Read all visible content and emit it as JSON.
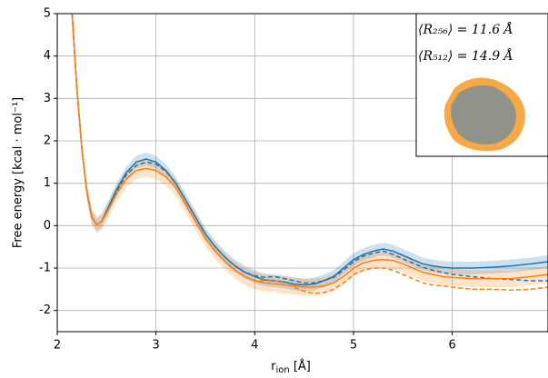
{
  "chart_data": {
    "type": "line",
    "x_label": "r",
    "x_label_sub": "ion",
    "x_label_unit": "[Å]",
    "y_label": "Free energy [kcal · mol⁻¹]",
    "inset_lines": [
      "⟨R₂₅₆⟩ = 11.6 Å",
      "⟨R₅₁₂⟩ = 14.9 Å"
    ],
    "x": [
      2.15,
      2.2,
      2.25,
      2.3,
      2.35,
      2.4,
      2.45,
      2.5,
      2.6,
      2.7,
      2.8,
      2.9,
      3.0,
      3.1,
      3.2,
      3.3,
      3.4,
      3.5,
      3.6,
      3.7,
      3.8,
      3.9,
      4.0,
      4.1,
      4.2,
      4.3,
      4.4,
      4.5,
      4.6,
      4.7,
      4.8,
      4.9,
      5.0,
      5.1,
      5.2,
      5.3,
      5.4,
      5.5,
      5.6,
      5.7,
      5.8,
      5.9,
      6.0,
      6.2,
      6.4,
      6.6,
      6.8,
      6.97
    ],
    "series": [
      {
        "color": "#1f77b4",
        "dash": false,
        "band": 0.15,
        "values": [
          5,
          3.2,
          1.8,
          0.8,
          0.2,
          0.02,
          0.1,
          0.35,
          0.85,
          1.25,
          1.5,
          1.57,
          1.5,
          1.3,
          1.0,
          0.6,
          0.2,
          -0.2,
          -0.5,
          -0.75,
          -0.95,
          -1.1,
          -1.2,
          -1.28,
          -1.3,
          -1.33,
          -1.38,
          -1.4,
          -1.38,
          -1.3,
          -1.2,
          -1.0,
          -0.8,
          -0.68,
          -0.6,
          -0.55,
          -0.6,
          -0.7,
          -0.8,
          -0.9,
          -0.95,
          -0.98,
          -1.0,
          -1.0,
          -0.98,
          -0.95,
          -0.9,
          -0.85
        ]
      },
      {
        "color": "#1f77b4",
        "dash": true,
        "values": [
          5,
          3.2,
          1.8,
          0.8,
          0.2,
          0.02,
          0.1,
          0.33,
          0.8,
          1.2,
          1.42,
          1.5,
          1.45,
          1.28,
          1.0,
          0.6,
          0.2,
          -0.2,
          -0.5,
          -0.75,
          -0.95,
          -1.1,
          -1.18,
          -1.22,
          -1.2,
          -1.25,
          -1.3,
          -1.35,
          -1.35,
          -1.3,
          -1.22,
          -1.05,
          -0.85,
          -0.72,
          -0.65,
          -0.6,
          -0.68,
          -0.78,
          -0.88,
          -0.98,
          -1.05,
          -1.1,
          -1.15,
          -1.2,
          -1.25,
          -1.27,
          -1.3,
          -1.3
        ]
      },
      {
        "color": "#ff7f0e",
        "dash": false,
        "band": 0.2,
        "values": [
          5,
          3.2,
          1.8,
          0.8,
          0.2,
          0.02,
          0.1,
          0.3,
          0.75,
          1.1,
          1.3,
          1.35,
          1.3,
          1.15,
          0.9,
          0.5,
          0.1,
          -0.3,
          -0.6,
          -0.85,
          -1.05,
          -1.2,
          -1.3,
          -1.35,
          -1.37,
          -1.4,
          -1.42,
          -1.45,
          -1.45,
          -1.42,
          -1.35,
          -1.2,
          -1.0,
          -0.88,
          -0.82,
          -0.8,
          -0.82,
          -0.9,
          -1.0,
          -1.1,
          -1.15,
          -1.2,
          -1.22,
          -1.25,
          -1.25,
          -1.25,
          -1.2,
          -1.15
        ]
      },
      {
        "color": "#ff7f0e",
        "dash": true,
        "values": [
          5,
          3.2,
          1.8,
          0.8,
          0.2,
          0.02,
          0.1,
          0.3,
          0.75,
          1.1,
          1.3,
          1.35,
          1.3,
          1.15,
          0.9,
          0.5,
          0.1,
          -0.3,
          -0.6,
          -0.85,
          -1.05,
          -1.2,
          -1.3,
          -1.3,
          -1.3,
          -1.35,
          -1.45,
          -1.55,
          -1.6,
          -1.58,
          -1.5,
          -1.35,
          -1.15,
          -1.05,
          -1.0,
          -1.0,
          -1.05,
          -1.15,
          -1.25,
          -1.35,
          -1.4,
          -1.42,
          -1.45,
          -1.5,
          -1.5,
          -1.52,
          -1.5,
          -1.45
        ]
      }
    ],
    "xlim": [
      2,
      6.97
    ],
    "ylim": [
      -2.5,
      5
    ],
    "xticks": [
      2,
      3,
      4,
      5,
      6
    ],
    "yticks": [
      -2,
      -1,
      0,
      1,
      2,
      3,
      4,
      5
    ],
    "grid": true
  }
}
